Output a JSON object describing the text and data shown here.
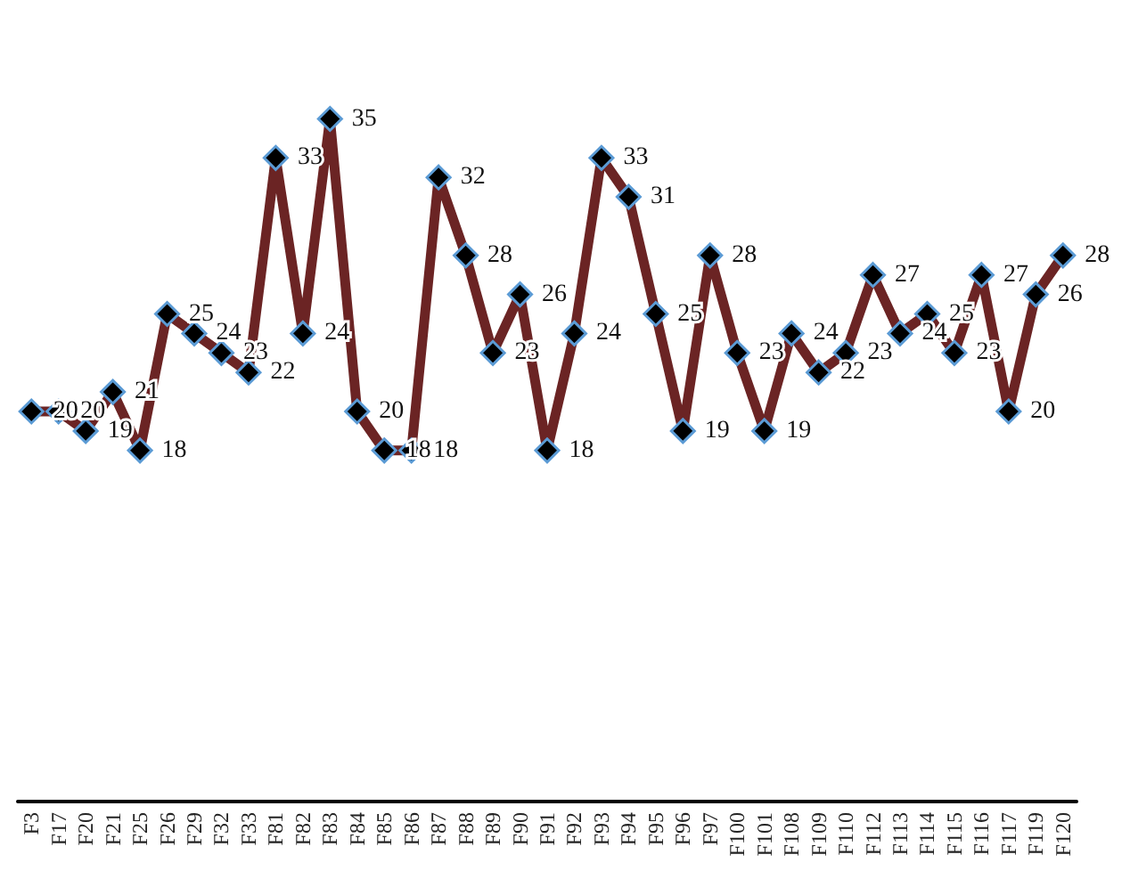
{
  "chart_data": {
    "type": "line",
    "categories": [
      "F3",
      "F17",
      "F20",
      "F21",
      "F25",
      "F26",
      "F29",
      "F32",
      "F33",
      "F81",
      "F82",
      "F83",
      "F84",
      "F85",
      "F86",
      "F87",
      "F88",
      "F89",
      "F90",
      "F91",
      "F92",
      "F93",
      "F94",
      "F95",
      "F96",
      "F97",
      "F100",
      "F101",
      "F108",
      "F109",
      "F110",
      "F112",
      "F113",
      "F114",
      "F115",
      "F116",
      "F117",
      "F119",
      "F120"
    ],
    "series": [
      {
        "color": "#6b2424",
        "values": [
          20,
          20,
          19,
          21,
          18,
          25,
          24,
          23,
          22,
          33,
          24,
          35,
          20,
          18,
          18,
          32,
          28,
          23,
          26,
          18,
          24,
          33,
          31,
          25,
          19,
          28,
          23,
          19,
          24,
          22,
          23,
          27,
          24,
          25,
          23,
          27,
          20,
          26,
          28
        ]
      }
    ],
    "tick_labels": "x",
    "grid": false,
    "marker": "diamond",
    "line_style": "solid",
    "data_labels": true
  }
}
